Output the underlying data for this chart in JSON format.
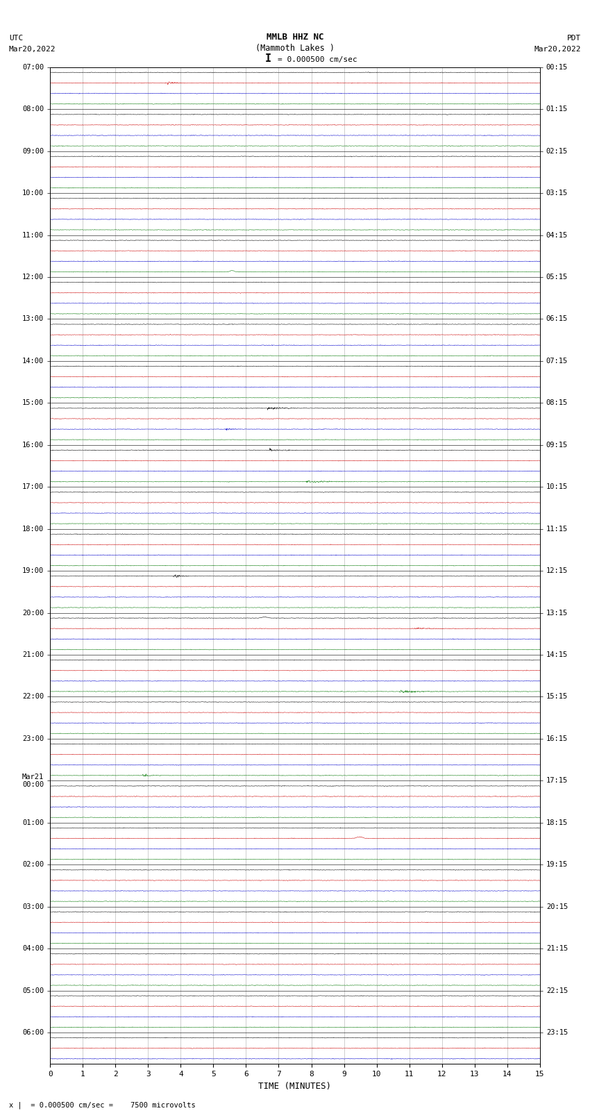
{
  "title_line1": "MMLB HHZ NC",
  "title_line2": "(Mammoth Lakes )",
  "title_scale": "I = 0.000500 cm/sec",
  "left_header_line1": "UTC",
  "left_header_line2": "Mar20,2022",
  "right_header_line1": "PDT",
  "right_header_line2": "Mar20,2022",
  "xlabel": "TIME (MINUTES)",
  "footer": "x |  = 0.000500 cm/sec =    7500 microvolts",
  "background_color": "#ffffff",
  "trace_colors": [
    "#000000",
    "#cc0000",
    "#0000cc",
    "#007700"
  ],
  "grid_color": "#888888",
  "utc_labels": [
    "07:00",
    "",
    "",
    "",
    "08:00",
    "",
    "",
    "",
    "09:00",
    "",
    "",
    "",
    "10:00",
    "",
    "",
    "",
    "11:00",
    "",
    "",
    "",
    "12:00",
    "",
    "",
    "",
    "13:00",
    "",
    "",
    "",
    "14:00",
    "",
    "",
    "",
    "15:00",
    "",
    "",
    "",
    "16:00",
    "",
    "",
    "",
    "17:00",
    "",
    "",
    "",
    "18:00",
    "",
    "",
    "",
    "19:00",
    "",
    "",
    "",
    "20:00",
    "",
    "",
    "",
    "21:00",
    "",
    "",
    "",
    "22:00",
    "",
    "",
    "",
    "23:00",
    "",
    "",
    "",
    "Mar21\n00:00",
    "",
    "",
    "",
    "01:00",
    "",
    "",
    "",
    "02:00",
    "",
    "",
    "",
    "03:00",
    "",
    "",
    "",
    "04:00",
    "",
    "",
    "",
    "05:00",
    "",
    "",
    "",
    "06:00",
    "",
    ""
  ],
  "pdt_labels": [
    "00:15",
    "",
    "",
    "",
    "01:15",
    "",
    "",
    "",
    "02:15",
    "",
    "",
    "",
    "03:15",
    "",
    "",
    "",
    "04:15",
    "",
    "",
    "",
    "05:15",
    "",
    "",
    "",
    "06:15",
    "",
    "",
    "",
    "07:15",
    "",
    "",
    "",
    "08:15",
    "",
    "",
    "",
    "09:15",
    "",
    "",
    "",
    "10:15",
    "",
    "",
    "",
    "11:15",
    "",
    "",
    "",
    "12:15",
    "",
    "",
    "",
    "13:15",
    "",
    "",
    "",
    "14:15",
    "",
    "",
    "",
    "15:15",
    "",
    "",
    "",
    "16:15",
    "",
    "",
    "",
    "17:15",
    "",
    "",
    "",
    "18:15",
    "",
    "",
    "",
    "19:15",
    "",
    "",
    "",
    "20:15",
    "",
    "",
    "",
    "21:15",
    "",
    "",
    "",
    "22:15",
    "",
    "",
    "",
    "23:15",
    "",
    ""
  ],
  "x_min": 0,
  "x_max": 15,
  "x_ticks": [
    0,
    1,
    2,
    3,
    4,
    5,
    6,
    7,
    8,
    9,
    10,
    11,
    12,
    13,
    14,
    15
  ],
  "figsize": [
    8.5,
    16.13
  ],
  "dpi": 100,
  "noise_base": 0.018,
  "noise_high": 0.045,
  "spike_prob": 0.12,
  "trace_lw": 0.35
}
